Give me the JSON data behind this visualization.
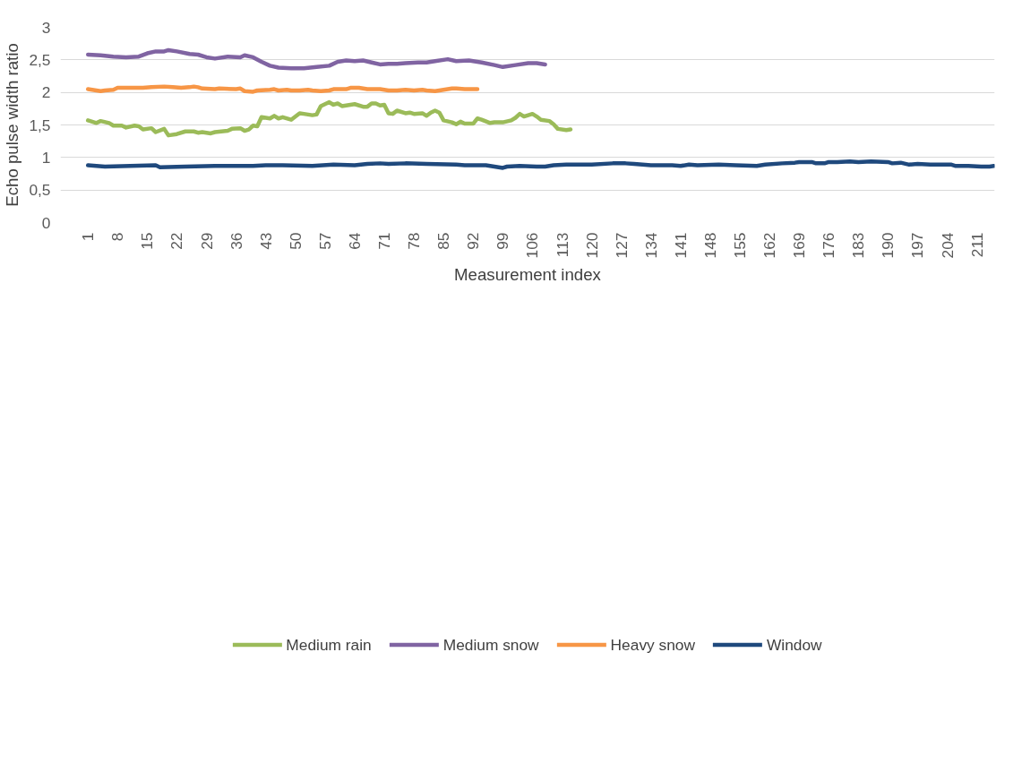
{
  "chart_data": {
    "type": "line",
    "xlabel": "Measurement index",
    "ylabel": "Echo pulse width ratio",
    "xlim": [
      -5.5,
      215.2
    ],
    "xticks": [
      1,
      8,
      15,
      22,
      29,
      36,
      43,
      50,
      57,
      64,
      71,
      78,
      85,
      92,
      99,
      106,
      113,
      120,
      127,
      134,
      141,
      148,
      155,
      162,
      169,
      176,
      183,
      190,
      197,
      204,
      211
    ],
    "ylim": [
      0,
      3
    ],
    "yticks": [
      0,
      {
        "value": 0.5,
        "label": "0,5"
      },
      1,
      {
        "value": 1.5,
        "label": "1,5"
      },
      2,
      {
        "value": 2.5,
        "label": "2,5"
      },
      3
    ],
    "grid": "y",
    "legend": "bottom",
    "marker": "none",
    "line_style": "solid",
    "series": [
      {
        "name": "Medium rain",
        "color": "#9bbb59",
        "x": [
          1,
          3,
          4,
          6,
          7,
          9,
          10,
          12,
          13,
          14,
          16,
          17,
          19,
          20,
          22,
          24,
          26,
          27,
          28,
          30,
          31,
          34,
          35,
          37,
          38,
          39,
          40,
          41,
          42,
          44,
          45,
          46,
          47,
          49,
          51,
          52,
          54,
          55,
          56,
          57,
          58,
          59,
          60,
          61,
          64,
          66,
          67,
          68,
          69,
          70,
          71,
          72,
          73,
          74,
          76,
          77,
          78,
          80,
          81,
          82,
          83,
          84,
          85,
          87,
          88,
          89,
          90,
          92,
          93,
          94,
          96,
          97,
          99,
          101,
          102,
          103,
          104,
          106,
          107,
          108,
          110,
          111,
          112,
          114,
          115
        ],
        "values": [
          1.57,
          1.53,
          1.56,
          1.53,
          1.49,
          1.49,
          1.46,
          1.49,
          1.48,
          1.43,
          1.45,
          1.39,
          1.44,
          1.34,
          1.36,
          1.4,
          1.4,
          1.38,
          1.39,
          1.37,
          1.39,
          1.41,
          1.44,
          1.45,
          1.41,
          1.43,
          1.49,
          1.48,
          1.62,
          1.6,
          1.64,
          1.6,
          1.62,
          1.58,
          1.68,
          1.67,
          1.65,
          1.66,
          1.79,
          1.82,
          1.85,
          1.81,
          1.83,
          1.79,
          1.82,
          1.78,
          1.78,
          1.83,
          1.83,
          1.8,
          1.81,
          1.68,
          1.67,
          1.72,
          1.68,
          1.69,
          1.67,
          1.68,
          1.64,
          1.69,
          1.72,
          1.69,
          1.57,
          1.54,
          1.51,
          1.55,
          1.52,
          1.52,
          1.6,
          1.58,
          1.53,
          1.54,
          1.54,
          1.57,
          1.61,
          1.67,
          1.63,
          1.67,
          1.63,
          1.58,
          1.56,
          1.51,
          1.44,
          1.42,
          1.43
        ]
      },
      {
        "name": "Medium snow",
        "color": "#8064a2",
        "x": [
          1,
          4,
          7,
          10,
          13,
          15,
          17,
          19,
          20,
          22,
          25,
          27,
          29,
          31,
          34,
          37,
          38,
          40,
          42,
          44,
          46,
          49,
          52,
          55,
          58,
          60,
          62,
          64,
          66,
          68,
          70,
          72,
          74,
          76,
          79,
          81,
          83,
          86,
          88,
          91,
          94,
          97,
          99,
          102,
          105,
          107,
          109
        ],
        "values": [
          2.58,
          2.57,
          2.55,
          2.54,
          2.55,
          2.6,
          2.63,
          2.63,
          2.65,
          2.63,
          2.59,
          2.58,
          2.54,
          2.52,
          2.55,
          2.54,
          2.57,
          2.54,
          2.47,
          2.41,
          2.38,
          2.37,
          2.37,
          2.39,
          2.41,
          2.47,
          2.49,
          2.48,
          2.49,
          2.46,
          2.43,
          2.44,
          2.44,
          2.45,
          2.46,
          2.46,
          2.48,
          2.51,
          2.48,
          2.49,
          2.46,
          2.42,
          2.39,
          2.42,
          2.45,
          2.45,
          2.43
        ]
      },
      {
        "name": "Heavy snow",
        "color": "#f79646",
        "x": [
          1,
          4,
          5,
          7,
          8,
          10,
          14,
          16,
          19,
          21,
          23,
          25,
          26,
          27,
          28,
          31,
          32,
          36,
          37,
          38,
          40,
          41,
          44,
          45,
          46,
          48,
          49,
          51,
          53,
          54,
          56,
          58,
          59,
          62,
          63,
          65,
          66,
          67,
          70,
          72,
          74,
          76,
          78,
          80,
          81,
          83,
          85,
          87,
          88,
          90,
          93
        ],
        "values": [
          2.05,
          2.02,
          2.03,
          2.04,
          2.07,
          2.07,
          2.07,
          2.08,
          2.09,
          2.08,
          2.07,
          2.08,
          2.09,
          2.08,
          2.06,
          2.05,
          2.06,
          2.05,
          2.06,
          2.02,
          2.01,
          2.03,
          2.04,
          2.05,
          2.03,
          2.04,
          2.03,
          2.03,
          2.04,
          2.03,
          2.02,
          2.03,
          2.05,
          2.05,
          2.07,
          2.07,
          2.06,
          2.05,
          2.05,
          2.03,
          2.03,
          2.04,
          2.03,
          2.04,
          2.03,
          2.02,
          2.04,
          2.06,
          2.06,
          2.05,
          2.05
        ]
      },
      {
        "name": "Window",
        "color": "#1f497d",
        "x": [
          1,
          5,
          11,
          17,
          18,
          24,
          31,
          37,
          40,
          43,
          47,
          54,
          59,
          64,
          67,
          70,
          72,
          76,
          81,
          88,
          90,
          95,
          99,
          100,
          103,
          107,
          109,
          111,
          114,
          120,
          125,
          128,
          130,
          134,
          139,
          141,
          143,
          145,
          150,
          154,
          159,
          161,
          165,
          168,
          169,
          172,
          173,
          175,
          176,
          178,
          181,
          183,
          186,
          190,
          191,
          193,
          195,
          197,
          200,
          205,
          206,
          209,
          212,
          214,
          215
        ],
        "values": [
          0.88,
          0.86,
          0.87,
          0.88,
          0.85,
          0.86,
          0.87,
          0.87,
          0.87,
          0.88,
          0.88,
          0.87,
          0.89,
          0.88,
          0.9,
          0.91,
          0.9,
          0.91,
          0.9,
          0.89,
          0.88,
          0.88,
          0.84,
          0.86,
          0.87,
          0.86,
          0.86,
          0.88,
          0.89,
          0.89,
          0.91,
          0.91,
          0.9,
          0.88,
          0.88,
          0.87,
          0.89,
          0.88,
          0.89,
          0.88,
          0.87,
          0.89,
          0.91,
          0.92,
          0.93,
          0.93,
          0.91,
          0.91,
          0.93,
          0.93,
          0.94,
          0.93,
          0.94,
          0.93,
          0.91,
          0.92,
          0.89,
          0.9,
          0.89,
          0.89,
          0.87,
          0.87,
          0.86,
          0.86,
          0.87
        ]
      }
    ]
  }
}
